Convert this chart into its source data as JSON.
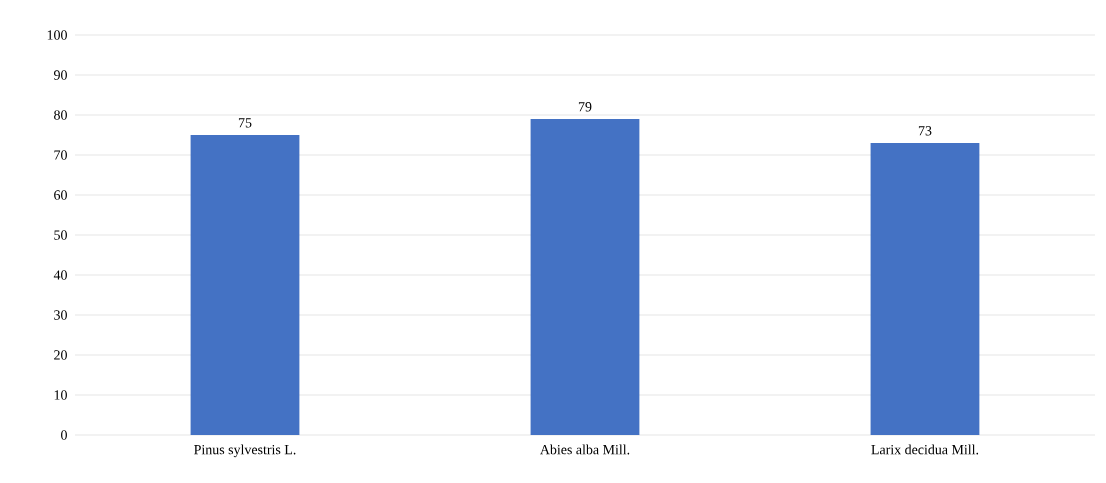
{
  "chart_data": {
    "type": "bar",
    "categories": [
      "Pinus sylvestris L.",
      "Abies alba Mill.",
      "Larix decidua Mill."
    ],
    "values": [
      75,
      79,
      73
    ],
    "color": "#4472c4",
    "ylim": [
      0,
      100
    ],
    "yticks": [
      0,
      10,
      20,
      30,
      40,
      50,
      60,
      70,
      80,
      90,
      100
    ],
    "grid": "y",
    "data_labels": true
  }
}
